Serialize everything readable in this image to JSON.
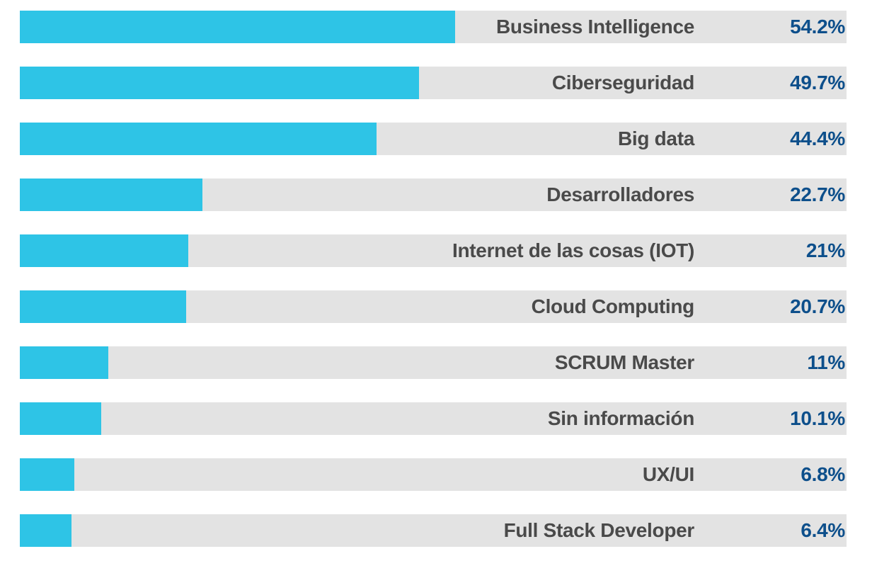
{
  "chart_data": {
    "type": "bar",
    "orientation": "horizontal",
    "title": "",
    "xlabel": "",
    "ylabel": "",
    "xlim": [
      0,
      100
    ],
    "categories": [
      "Business Intelligence",
      "Ciberseguridad",
      "Big data",
      "Desarrolladores",
      "Internet de las cosas (IOT)",
      "Cloud Computing",
      "SCRUM Master",
      "Sin información",
      "UX/UI",
      "Full Stack Developer"
    ],
    "values": [
      54.2,
      49.7,
      44.4,
      22.7,
      21,
      20.7,
      11,
      10.1,
      6.8,
      6.4
    ],
    "value_labels": [
      "54.2%",
      "49.7%",
      "44.4%",
      "22.7%",
      "21%",
      "20.7%",
      "11%",
      "10.1%",
      "6.8%",
      "6.4%"
    ],
    "colors": {
      "bar": "#2ec4e6",
      "track": "#e3e3e3",
      "label": "#4a4a4a",
      "value": "#0d4f8b"
    }
  }
}
